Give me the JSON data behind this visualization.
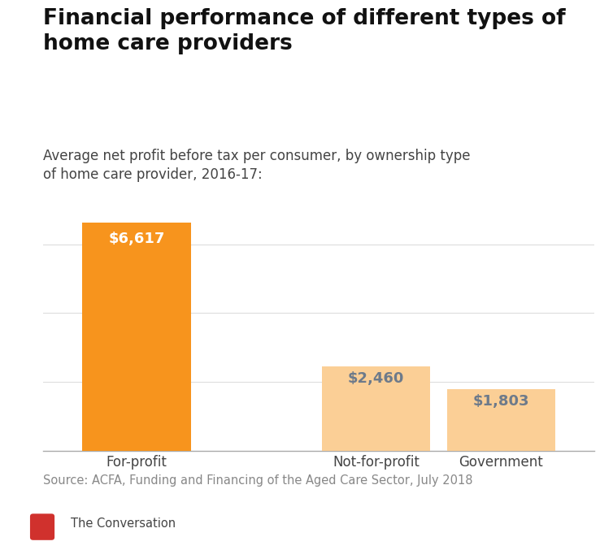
{
  "title": "Financial performance of different types of\nhome care providers",
  "subtitle": "Average net profit before tax per consumer, by ownership type\nof home care provider, 2016-17:",
  "categories": [
    "For-profit",
    "Not-for-profit",
    "Government"
  ],
  "values": [
    6617,
    2460,
    1803
  ],
  "bar_colors": [
    "#F7941D",
    "#FBCF96",
    "#FBCF96"
  ],
  "label_colors": [
    "#FFFFFF",
    "#6D7A8A",
    "#6D7A8A"
  ],
  "bar_labels": [
    "$6,617",
    "$2,460",
    "$1,803"
  ],
  "source": "Source: ACFA, Funding and Financing of the Aged Care Sector, July 2018",
  "branding": "The Conversation",
  "branding_color": "#D0312D",
  "ylim": [
    0,
    7500
  ],
  "title_fontsize": 19,
  "subtitle_fontsize": 12,
  "tick_fontsize": 12,
  "label_fontsize": 13,
  "source_fontsize": 10.5,
  "background_color": "#FFFFFF",
  "grid_color": "#DDDDDD",
  "bar_width": 0.52,
  "x_positions": [
    0,
    1.15,
    1.75
  ]
}
